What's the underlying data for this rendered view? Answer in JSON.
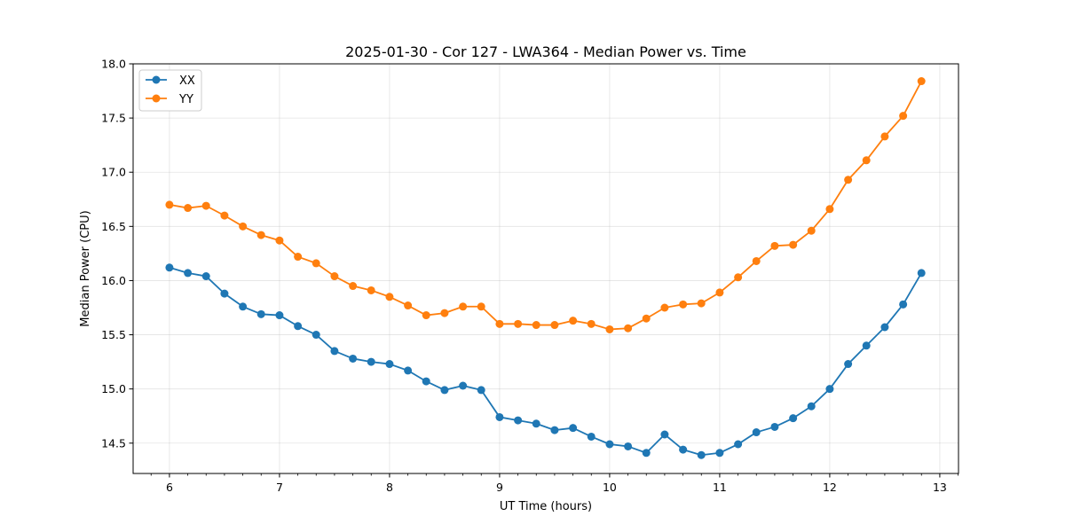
{
  "chart_data": {
    "type": "line",
    "title": "2025-01-30 - Cor 127 - LWA364 - Median Power vs. Time",
    "xlabel": "UT Time (hours)",
    "ylabel": "Median Power (CPU)",
    "xlim": [
      5.67,
      13.17
    ],
    "ylim": [
      14.22,
      18.0
    ],
    "grid": true,
    "legend_position": "top-left",
    "x_ticks": [
      6,
      7,
      8,
      9,
      10,
      11,
      12,
      13
    ],
    "x_tick_labels": [
      "6",
      "7",
      "8",
      "9",
      "10",
      "11",
      "12",
      "13"
    ],
    "y_ticks": [
      14.5,
      15.0,
      15.5,
      16.0,
      16.5,
      17.0,
      17.5,
      18.0
    ],
    "y_tick_labels": [
      "14.5",
      "15.0",
      "15.5",
      "16.0",
      "16.5",
      "17.0",
      "17.5",
      "18.0"
    ],
    "x": [
      6.0,
      6.167,
      6.333,
      6.5,
      6.667,
      6.833,
      7.0,
      7.167,
      7.333,
      7.5,
      7.667,
      7.833,
      8.0,
      8.167,
      8.333,
      8.5,
      8.667,
      8.833,
      9.0,
      9.167,
      9.333,
      9.5,
      9.667,
      9.833,
      10.0,
      10.167,
      10.333,
      10.5,
      10.667,
      10.833,
      11.0,
      11.167,
      11.333,
      11.5,
      11.667,
      11.833,
      12.0,
      12.167,
      12.333,
      12.5,
      12.667,
      12.833
    ],
    "series": [
      {
        "name": "XX",
        "color": "#1f77b4",
        "values": [
          16.12,
          16.07,
          16.04,
          15.88,
          15.76,
          15.69,
          15.68,
          15.58,
          15.5,
          15.35,
          15.28,
          15.25,
          15.23,
          15.17,
          15.07,
          14.99,
          15.03,
          14.99,
          14.74,
          14.71,
          14.68,
          14.62,
          14.64,
          14.56,
          14.49,
          14.47,
          14.41,
          14.58,
          14.44,
          14.39,
          14.41,
          14.49,
          14.6,
          14.65,
          14.73,
          14.84,
          15.0,
          15.23,
          15.4,
          15.57,
          15.78,
          16.07
        ]
      },
      {
        "name": "YY",
        "color": "#ff7f0e",
        "values": [
          16.7,
          16.67,
          16.69,
          16.6,
          16.5,
          16.42,
          16.37,
          16.22,
          16.16,
          16.04,
          15.95,
          15.91,
          15.85,
          15.77,
          15.68,
          15.7,
          15.76,
          15.76,
          15.6,
          15.6,
          15.59,
          15.59,
          15.63,
          15.6,
          15.55,
          15.56,
          15.65,
          15.75,
          15.78,
          15.79,
          15.89,
          16.03,
          16.18,
          16.32,
          16.33,
          16.46,
          16.66,
          16.93,
          17.11,
          17.33,
          17.52,
          17.84
        ]
      }
    ]
  }
}
